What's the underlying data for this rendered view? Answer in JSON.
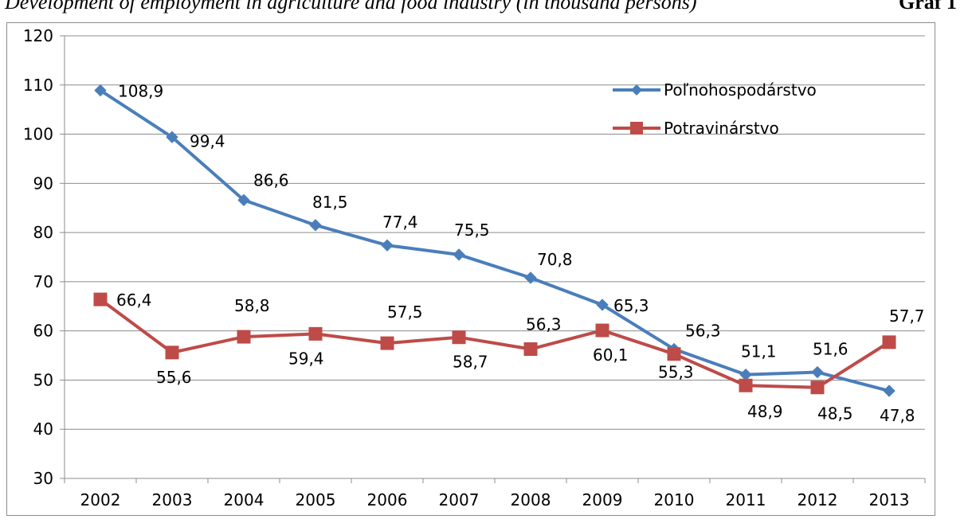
{
  "caption": {
    "text": "Development of employment in agriculture and food industry (in thousand persons)",
    "graph_label": "Graf 1"
  },
  "chart_data": {
    "type": "line",
    "title": "",
    "xlabel": "",
    "ylabel": "",
    "categories": [
      "2002",
      "2003",
      "2004",
      "2005",
      "2006",
      "2007",
      "2008",
      "2009",
      "2010",
      "2011",
      "2012",
      "2013"
    ],
    "ylim": [
      30,
      120
    ],
    "yticks": [
      30,
      40,
      50,
      60,
      70,
      80,
      90,
      100,
      110,
      120
    ],
    "grid": true,
    "legend_position": "top-right",
    "series": [
      {
        "name": "Poľnohospodárstvo",
        "marker": "diamond",
        "color": "#4a7ebb",
        "values": [
          108.9,
          99.4,
          86.6,
          81.5,
          77.4,
          75.5,
          70.8,
          65.3,
          56.3,
          51.1,
          51.6,
          47.8
        ],
        "labels": [
          "108,9",
          "99,4",
          "86,6",
          "81,5",
          "77,4",
          "75,5",
          "70,8",
          "65,3",
          "56,3",
          "51,1",
          "51,6",
          "47,8"
        ]
      },
      {
        "name": "Potravinárstvo",
        "marker": "square",
        "color": "#be4b48",
        "values": [
          66.4,
          55.6,
          58.8,
          59.4,
          57.5,
          58.7,
          56.3,
          60.1,
          55.3,
          48.9,
          48.5,
          57.7
        ],
        "labels": [
          "66,4",
          "55,6",
          "58,8",
          "59,4",
          "57,5",
          "58,7",
          "56,3",
          "60,1",
          "55,3",
          "48,9",
          "48,5",
          "57,7"
        ]
      }
    ]
  }
}
